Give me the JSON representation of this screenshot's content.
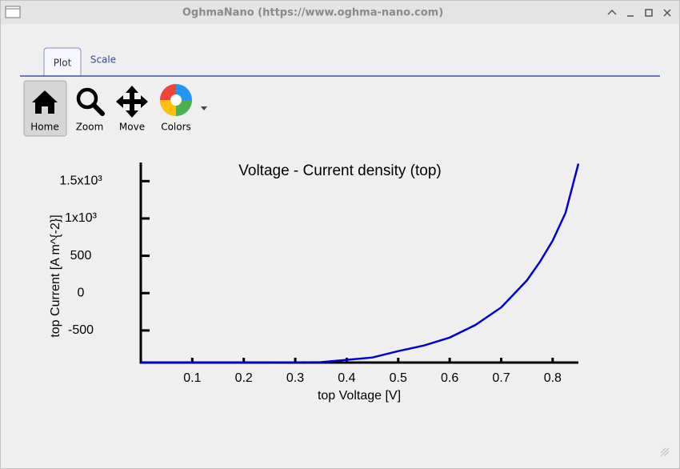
{
  "window": {
    "title": "OghmaNano (https://www.oghma-nano.com)"
  },
  "tabs": [
    "Plot",
    "Scale"
  ],
  "toolbar": [
    "Home",
    "Zoom",
    "Move",
    "Colors"
  ],
  "chart_data": {
    "type": "line",
    "title": "Voltage - Current density (top)",
    "x_label": "top Voltage [V]",
    "y_label": "top Current [A m^{-2}]",
    "x": [
      0,
      0.1,
      0.2,
      0.3,
      0.35,
      0.4,
      0.45,
      0.5,
      0.55,
      0.6,
      0.65,
      0.7,
      0.75,
      0.775,
      0.8,
      0.825,
      0.85
    ],
    "values": [
      -930,
      -930,
      -930,
      -928,
      -925,
      -894,
      -862,
      -777,
      -702,
      -596,
      -426,
      -191,
      170,
      415,
      702,
      1075,
      1734
    ],
    "color": "#0000d0",
    "xlim": [
      0,
      0.85
    ],
    "ylim": [
      -930,
      1750
    ],
    "xticks": [
      0.1,
      0.2,
      0.3,
      0.4,
      0.5,
      0.6,
      0.7,
      0.8
    ],
    "yticks": [
      -500,
      0,
      500,
      {
        "value": 1000,
        "label": "1x10³"
      },
      {
        "value": 1500,
        "label": "1.5x10³"
      }
    ]
  }
}
